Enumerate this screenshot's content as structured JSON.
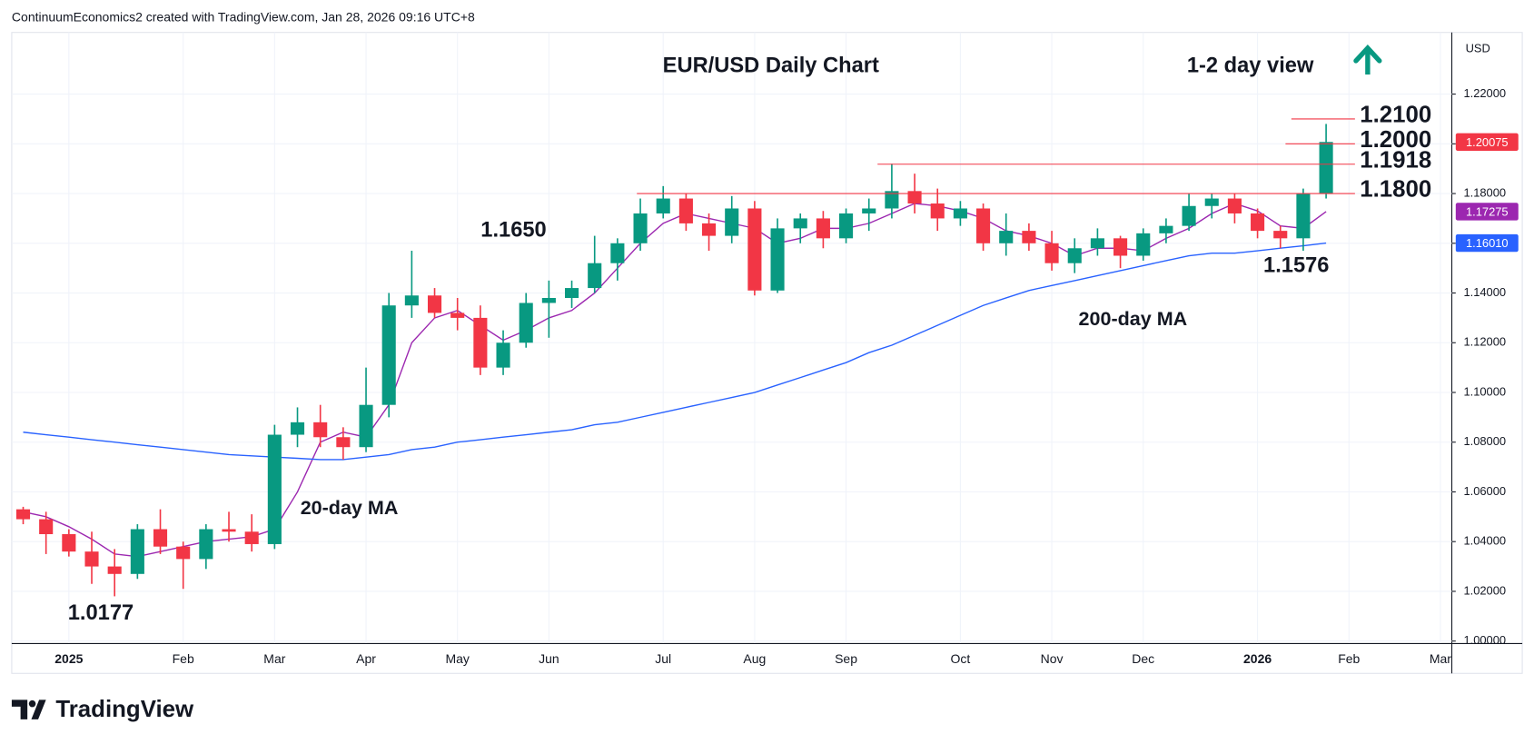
{
  "header": "ContinuumEconomics2 created with TradingView.com, Jan 28, 2026 09:16 UTC+8",
  "footer_logo": "TradingView",
  "chart_data": {
    "type": "candlestick",
    "title": "EUR/USD Daily Chart",
    "subtitle": "1-2 day view",
    "currency": "USD",
    "categories": [
      null,
      null,
      "2025",
      null,
      null,
      null,
      null,
      "Feb",
      null,
      null,
      null,
      "Mar",
      null,
      null,
      null,
      "Apr",
      null,
      null,
      null,
      "May",
      null,
      null,
      null,
      "Jun",
      null,
      null,
      null,
      null,
      "Jul",
      null,
      null,
      null,
      "Aug",
      null,
      null,
      null,
      "Sep",
      null,
      null,
      null,
      null,
      "Oct",
      null,
      null,
      null,
      "Nov",
      null,
      null,
      null,
      "Dec",
      null,
      null,
      null,
      null,
      "2026",
      null,
      null,
      null,
      "Feb",
      null,
      null,
      null,
      "Mar"
    ],
    "ohlc": {
      "color_up": "#089981",
      "color_down": "#f23645",
      "last_label": "1.20075",
      "open": [
        1.053,
        1.049,
        1.043,
        1.036,
        1.03,
        1.027,
        1.045,
        1.038,
        1.033,
        1.045,
        1.044,
        1.039,
        1.083,
        1.088,
        1.082,
        1.078,
        1.095,
        1.135,
        1.139,
        1.132,
        1.13,
        1.11,
        1.12,
        1.136,
        1.138,
        1.142,
        1.152,
        1.16,
        1.172,
        1.178,
        1.168,
        1.163,
        1.174,
        1.141,
        1.166,
        1.17,
        1.162,
        1.172,
        1.174,
        1.181,
        1.176,
        1.17,
        1.174,
        1.16,
        1.165,
        1.16,
        1.152,
        1.158,
        1.162,
        1.155,
        1.164,
        1.167,
        1.175,
        1.178,
        1.172,
        1.165,
        1.162,
        1.18,
        null,
        null,
        null,
        null,
        null
      ],
      "high": [
        1.054,
        1.052,
        1.045,
        1.044,
        1.037,
        1.047,
        1.053,
        1.04,
        1.047,
        1.052,
        1.051,
        1.087,
        1.094,
        1.095,
        1.086,
        1.11,
        1.14,
        1.157,
        1.142,
        1.138,
        1.135,
        1.125,
        1.14,
        1.145,
        1.145,
        1.163,
        1.162,
        1.178,
        1.183,
        1.18,
        1.172,
        1.179,
        1.177,
        1.17,
        1.172,
        1.173,
        1.174,
        1.178,
        1.192,
        1.188,
        1.182,
        1.177,
        1.176,
        1.172,
        1.168,
        1.165,
        1.162,
        1.166,
        1.163,
        1.166,
        1.17,
        1.18,
        1.18,
        1.18,
        1.174,
        1.167,
        1.182,
        1.208,
        null,
        null,
        null,
        null,
        null
      ],
      "low": [
        1.047,
        1.035,
        1.034,
        1.023,
        1.018,
        1.025,
        1.035,
        1.021,
        1.029,
        1.04,
        1.036,
        1.037,
        1.078,
        1.078,
        1.073,
        1.076,
        1.09,
        1.13,
        1.13,
        1.125,
        1.107,
        1.107,
        1.118,
        1.122,
        1.134,
        1.14,
        1.145,
        1.157,
        1.17,
        1.165,
        1.157,
        1.16,
        1.139,
        1.14,
        1.16,
        1.158,
        1.16,
        1.165,
        1.17,
        1.172,
        1.165,
        1.167,
        1.157,
        1.155,
        1.157,
        1.149,
        1.148,
        1.155,
        1.15,
        1.153,
        1.16,
        1.165,
        1.17,
        1.168,
        1.162,
        1.158,
        1.157,
        1.178,
        null,
        null,
        null,
        null,
        null
      ],
      "close": [
        1.049,
        1.043,
        1.036,
        1.03,
        1.027,
        1.045,
        1.038,
        1.033,
        1.045,
        1.044,
        1.039,
        1.083,
        1.088,
        1.082,
        1.078,
        1.095,
        1.135,
        1.139,
        1.132,
        1.13,
        1.11,
        1.12,
        1.136,
        1.138,
        1.142,
        1.152,
        1.16,
        1.172,
        1.178,
        1.168,
        1.163,
        1.174,
        1.141,
        1.166,
        1.17,
        1.162,
        1.172,
        1.174,
        1.181,
        1.176,
        1.17,
        1.174,
        1.16,
        1.165,
        1.16,
        1.152,
        1.158,
        1.162,
        1.155,
        1.164,
        1.167,
        1.175,
        1.178,
        1.172,
        1.165,
        1.162,
        1.18,
        1.20075,
        null,
        null,
        null,
        null,
        null
      ]
    },
    "series": [
      {
        "name": "20-day MA",
        "color": "#9c27b0",
        "last_label": "1.17275",
        "values": [
          1.052,
          1.05,
          1.046,
          1.041,
          1.035,
          1.034,
          1.036,
          1.038,
          1.04,
          1.041,
          1.042,
          1.045,
          1.06,
          1.08,
          1.084,
          1.082,
          1.095,
          1.12,
          1.13,
          1.133,
          1.127,
          1.121,
          1.125,
          1.13,
          1.133,
          1.14,
          1.15,
          1.16,
          1.168,
          1.172,
          1.17,
          1.168,
          1.166,
          1.16,
          1.162,
          1.166,
          1.166,
          1.168,
          1.172,
          1.176,
          1.175,
          1.173,
          1.17,
          1.165,
          1.163,
          1.16,
          1.155,
          1.158,
          1.158,
          1.157,
          1.162,
          1.166,
          1.172,
          1.176,
          1.173,
          1.167,
          1.166,
          1.17275,
          null,
          null,
          null,
          null,
          null
        ]
      },
      {
        "name": "200-day MA",
        "color": "#2962ff",
        "last_label": "1.16010",
        "values": [
          1.084,
          1.083,
          1.082,
          1.081,
          1.08,
          1.079,
          1.078,
          1.077,
          1.076,
          1.075,
          1.0745,
          1.074,
          1.0735,
          1.073,
          1.073,
          1.074,
          1.075,
          1.077,
          1.078,
          1.08,
          1.081,
          1.082,
          1.083,
          1.084,
          1.085,
          1.087,
          1.088,
          1.09,
          1.092,
          1.094,
          1.096,
          1.098,
          1.1,
          1.103,
          1.106,
          1.109,
          1.112,
          1.116,
          1.119,
          1.123,
          1.127,
          1.131,
          1.135,
          1.138,
          1.141,
          1.143,
          1.145,
          1.147,
          1.149,
          1.151,
          1.153,
          1.155,
          1.156,
          1.156,
          1.157,
          1.158,
          1.159,
          1.1601,
          null,
          null,
          null,
          null,
          null
        ]
      }
    ],
    "levels": [
      {
        "value": 1.21,
        "label": "1.2100"
      },
      {
        "value": 1.2,
        "label": "1.2000"
      },
      {
        "value": 1.1918,
        "label": "1.1918"
      },
      {
        "value": 1.18,
        "label": "1.1800"
      }
    ],
    "level_color": "#f23645",
    "annotations": [
      "1.1650",
      "1.0177",
      "1.1576"
    ],
    "ylim": [
      0.9992,
      1.2448
    ],
    "yticks": [
      {
        "value": 1.0,
        "label": "1.00000"
      },
      {
        "value": 1.02,
        "label": "1.02000"
      },
      {
        "value": 1.04,
        "label": "1.04000"
      },
      {
        "value": 1.06,
        "label": "1.06000"
      },
      {
        "value": 1.08,
        "label": "1.08000"
      },
      {
        "value": 1.1,
        "label": "1.10000"
      },
      {
        "value": 1.12,
        "label": "1.12000"
      },
      {
        "value": 1.14,
        "label": "1.14000"
      },
      {
        "value": 1.16,
        "label": "1.16000"
      },
      {
        "value": 1.18,
        "label": "1.18000"
      },
      {
        "value": 1.2,
        "label": "1.20000"
      },
      {
        "value": 1.22,
        "label": "1.22000"
      }
    ],
    "grid": true
  }
}
